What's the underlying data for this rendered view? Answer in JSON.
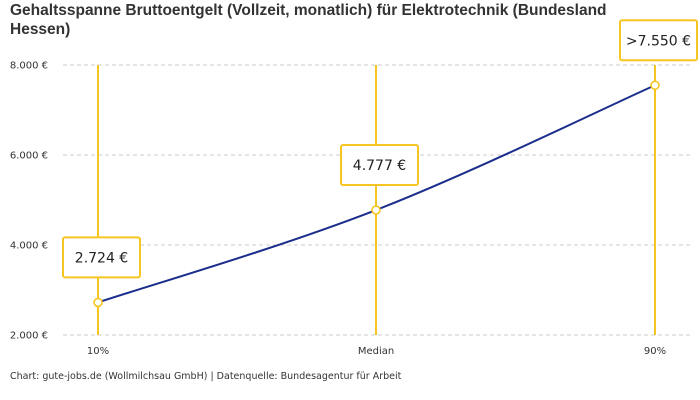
{
  "chart_data": {
    "type": "line",
    "title": "Gehaltsspanne Bruttoentgelt (Vollzeit, monatlich) für Elektrotechnik (Bundesland Hessen)",
    "categories": [
      "10%",
      "Median",
      "90%"
    ],
    "values": [
      2724,
      4777,
      7550
    ],
    "data_labels": [
      "2.724 €",
      "4.777 €",
      ">7.550 €"
    ],
    "ylim": [
      2000,
      8000
    ],
    "yticks": [
      2000,
      4000,
      6000,
      8000
    ],
    "ytick_labels": [
      "2.000 €",
      "4.000 €",
      "6.000 €",
      "8.000 €"
    ],
    "grid": true,
    "colors": {
      "line": "#1c2e8c",
      "accent": "#f7c520",
      "grid": "#cccccc"
    }
  },
  "footer": "Chart: gute-jobs.de (Wollmilchsau GmbH) | Datenquelle: Bundesagentur für Arbeit"
}
